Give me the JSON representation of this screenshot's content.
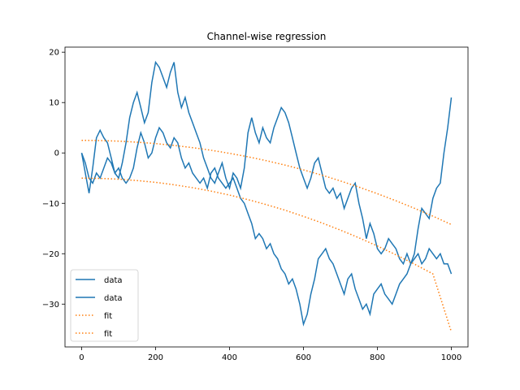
{
  "chart_data": {
    "type": "line",
    "title": "Channel-wise regression",
    "xlabel": "",
    "ylabel": "",
    "xlim": [
      -45,
      1045
    ],
    "ylim": [
      -38.5,
      21
    ],
    "xticks": [
      0,
      200,
      400,
      600,
      800,
      1000
    ],
    "yticks": [
      -30,
      -20,
      -10,
      0,
      10,
      20
    ],
    "grid": false,
    "legend": {
      "position": "lower-left",
      "entries": [
        "data",
        "data",
        "fit",
        "fit"
      ]
    },
    "colors": {
      "data": "#1f77b4",
      "fit": "#ff7f0e"
    },
    "series": [
      {
        "name": "data",
        "style": "solid",
        "x": [
          0,
          10,
          20,
          30,
          40,
          50,
          60,
          70,
          80,
          90,
          100,
          110,
          120,
          130,
          140,
          150,
          160,
          170,
          180,
          190,
          200,
          210,
          220,
          230,
          240,
          250,
          260,
          270,
          280,
          290,
          300,
          310,
          320,
          330,
          340,
          350,
          360,
          370,
          380,
          390,
          400,
          410,
          420,
          430,
          440,
          450,
          460,
          470,
          480,
          490,
          500,
          510,
          520,
          530,
          540,
          550,
          560,
          570,
          580,
          590,
          600,
          610,
          620,
          630,
          640,
          650,
          660,
          670,
          680,
          690,
          700,
          710,
          720,
          730,
          740,
          750,
          760,
          770,
          780,
          790,
          800,
          810,
          820,
          830,
          840,
          850,
          860,
          870,
          880,
          890,
          900,
          910,
          920,
          930,
          940,
          950,
          960,
          970,
          980,
          990,
          1000
        ],
        "y": [
          0,
          -4,
          -8,
          -3,
          3,
          4.5,
          3,
          2,
          -1,
          -4,
          -5,
          -2,
          2,
          7,
          10,
          12,
          9,
          6,
          8,
          14,
          18,
          17,
          15,
          13,
          16,
          18,
          12,
          9,
          11,
          8,
          6,
          4,
          2,
          -1,
          -3,
          -5,
          -6,
          -4,
          -2,
          -5,
          -7,
          -4,
          -5,
          -7,
          -3,
          4,
          7,
          4,
          2,
          5,
          3,
          2,
          5,
          7,
          9,
          8,
          6,
          3,
          0,
          -3,
          -5,
          -7,
          -5,
          -2,
          -1,
          -4,
          -7,
          -8,
          -7,
          -9,
          -8,
          -11,
          -9,
          -7,
          -6,
          -10,
          -13,
          -17,
          -14,
          -16,
          -19,
          -20,
          -19,
          -17,
          -18,
          -19,
          -21,
          -22,
          -20,
          -22,
          -20,
          -15,
          -11,
          -12,
          -13,
          -9,
          -7,
          -6,
          0,
          5,
          11
        ]
      },
      {
        "name": "data",
        "style": "solid",
        "x": [
          0,
          10,
          20,
          30,
          40,
          50,
          60,
          70,
          80,
          90,
          100,
          110,
          120,
          130,
          140,
          150,
          160,
          170,
          180,
          190,
          200,
          210,
          220,
          230,
          240,
          250,
          260,
          270,
          280,
          290,
          300,
          310,
          320,
          330,
          340,
          350,
          360,
          370,
          380,
          390,
          400,
          410,
          420,
          430,
          440,
          450,
          460,
          470,
          480,
          490,
          500,
          510,
          520,
          530,
          540,
          550,
          560,
          570,
          580,
          590,
          600,
          610,
          620,
          630,
          640,
          650,
          660,
          670,
          680,
          690,
          700,
          710,
          720,
          730,
          740,
          750,
          760,
          770,
          780,
          790,
          800,
          810,
          820,
          830,
          840,
          850,
          860,
          870,
          880,
          890,
          900,
          910,
          920,
          930,
          940,
          950,
          960,
          970,
          980,
          990,
          1000
        ],
        "y": [
          0,
          -2,
          -5,
          -6,
          -4,
          -5,
          -3,
          -1,
          -2,
          -4,
          -3,
          -5,
          -6,
          -5,
          -3,
          1,
          4,
          2,
          -1,
          0,
          3,
          5,
          4,
          2,
          1,
          3,
          2,
          -1,
          -3,
          -2,
          -4,
          -5,
          -6,
          -5,
          -7,
          -4,
          -3,
          -5,
          -6,
          -7,
          -6,
          -5,
          -7,
          -9,
          -10,
          -12,
          -14,
          -17,
          -16,
          -17,
          -19,
          -18,
          -20,
          -21,
          -23,
          -24,
          -26,
          -25,
          -27,
          -30,
          -34,
          -32,
          -28,
          -25,
          -21,
          -20,
          -19,
          -21,
          -22,
          -24,
          -26,
          -28,
          -25,
          -24,
          -27,
          -29,
          -31,
          -30,
          -32,
          -28,
          -27,
          -26,
          -28,
          -29,
          -30,
          -28,
          -26,
          -25,
          -24,
          -22,
          -21,
          -20,
          -22,
          -21,
          -19,
          -20,
          -21,
          -20,
          -22,
          -22,
          -24
        ]
      },
      {
        "name": "fit",
        "style": "dotted",
        "x": [
          0,
          50,
          100,
          150,
          200,
          250,
          300,
          350,
          400,
          450,
          500,
          550,
          600,
          650,
          700,
          750,
          800,
          850,
          900,
          950,
          1000
        ],
        "y": [
          2.5,
          2.46,
          2.34,
          2.14,
          1.86,
          1.49,
          1.05,
          0.53,
          -0.08,
          -0.77,
          -1.55,
          -2.41,
          -3.37,
          -4.42,
          -5.55,
          -6.78,
          -8.09,
          -9.49,
          -10.98,
          -12.56,
          -14.2
        ]
      },
      {
        "name": "fit",
        "style": "dotted",
        "x": [
          0,
          50,
          100,
          150,
          200,
          250,
          300,
          350,
          400,
          450,
          500,
          550,
          600,
          650,
          700,
          750,
          800,
          850,
          900,
          950,
          1000
        ],
        "y": [
          -5,
          -5.05,
          -5.21,
          -5.47,
          -5.83,
          -6.31,
          -6.89,
          -7.57,
          -8.36,
          -9.26,
          -10.26,
          -11.37,
          -12.58,
          -13.9,
          -15.32,
          -16.85,
          -18.48,
          -20.22,
          -22.06,
          -24.01,
          -35.5
        ]
      }
    ]
  }
}
